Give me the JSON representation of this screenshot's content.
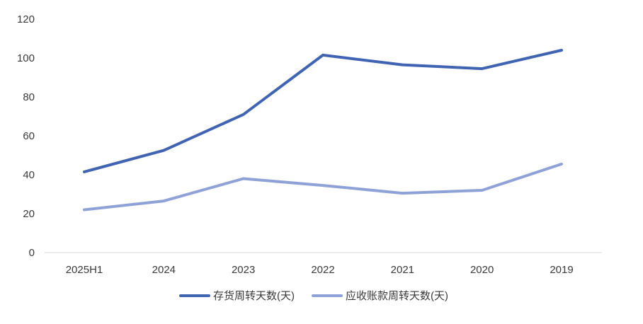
{
  "chart_data": {
    "type": "line",
    "categories": [
      "2025H1",
      "2024",
      "2023",
      "2022",
      "2021",
      "2020",
      "2019"
    ],
    "series": [
      {
        "name": "存货周转天数(天)",
        "color": "#4064b2",
        "values": [
          41.5,
          52.5,
          71.0,
          101.5,
          96.5,
          94.5,
          104.0
        ]
      },
      {
        "name": "应收账款周转天数(天)",
        "color": "#8fa2d7",
        "values": [
          22.0,
          26.5,
          38.0,
          34.5,
          30.5,
          32.0,
          45.5
        ]
      }
    ],
    "ylim": [
      0,
      120
    ],
    "yticks": [
      0,
      20,
      40,
      60,
      80,
      100,
      120
    ],
    "title": "",
    "xlabel": "",
    "ylabel": "",
    "grid": false,
    "legend_position": "bottom"
  }
}
